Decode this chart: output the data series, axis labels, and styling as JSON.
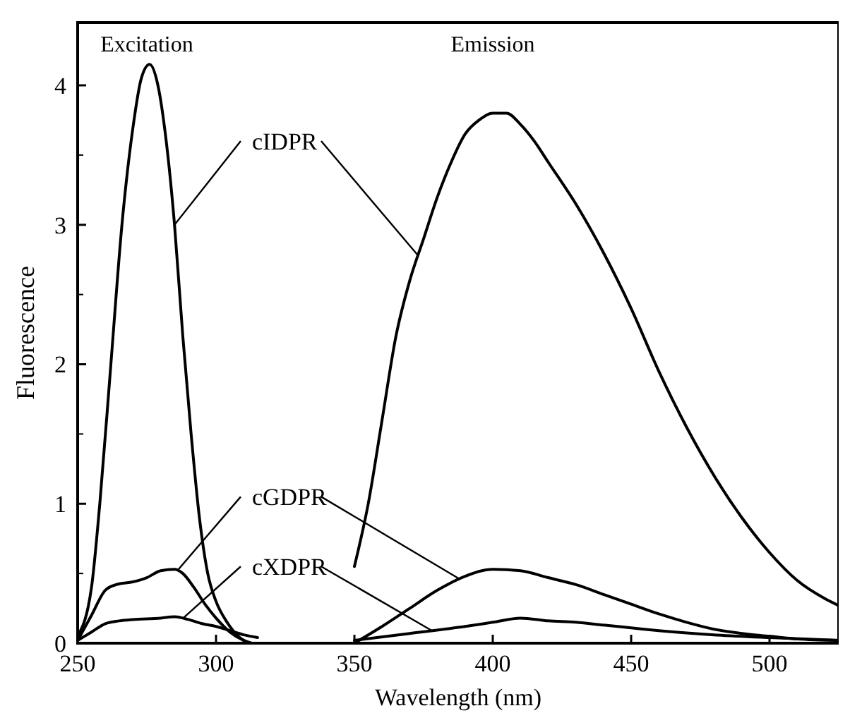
{
  "chart_data": {
    "type": "line",
    "xlabel": "Wavelength (nm)",
    "ylabel": "Fluorescence",
    "xlim": [
      250,
      525
    ],
    "ylim": [
      0,
      4.45
    ],
    "xticks": [
      250,
      300,
      350,
      400,
      450,
      500
    ],
    "yticks": [
      0,
      1,
      2,
      3,
      4
    ],
    "grid": false,
    "marker": "none",
    "line_style": "solid",
    "annotations": [
      "Excitation",
      "Emission"
    ],
    "series": [
      {
        "name": "cIDPR",
        "color": "#000000",
        "x": [
          250,
          255,
          258,
          262,
          266,
          270,
          273,
          276,
          279,
          282,
          285,
          288,
          291,
          294,
          297,
          300,
          304,
          308,
          312,
          331,
          350,
          355,
          360,
          365,
          370,
          375,
          380,
          385,
          390,
          395,
          400,
          405,
          410,
          415,
          420,
          430,
          440,
          450,
          460,
          470,
          480,
          490,
          500,
          510,
          520,
          525
        ],
        "values": [
          0.05,
          0.4,
          1.0,
          2.0,
          3.0,
          3.7,
          4.05,
          4.15,
          4.0,
          3.6,
          3.0,
          2.2,
          1.5,
          0.9,
          0.5,
          0.3,
          0.15,
          0.05,
          0.0,
          null,
          0.55,
          1.0,
          1.6,
          2.2,
          2.6,
          2.9,
          3.2,
          3.45,
          3.65,
          3.75,
          3.8,
          3.8,
          3.72,
          3.6,
          3.45,
          3.15,
          2.8,
          2.4,
          1.95,
          1.55,
          1.2,
          0.9,
          0.65,
          0.45,
          0.32,
          0.27
        ]
      },
      {
        "name": "cGDPR",
        "color": "#000000",
        "x": [
          250,
          255,
          260,
          264,
          270,
          275,
          280,
          285,
          288,
          292,
          296,
          300,
          305,
          310,
          313,
          331,
          350,
          360,
          370,
          380,
          390,
          400,
          410,
          420,
          430,
          440,
          450,
          460,
          470,
          480,
          490,
          500,
          510,
          525
        ],
        "values": [
          0.02,
          0.2,
          0.38,
          0.42,
          0.44,
          0.47,
          0.52,
          0.53,
          0.5,
          0.4,
          0.28,
          0.18,
          0.08,
          0.02,
          0.0,
          null,
          0.0,
          0.12,
          0.25,
          0.38,
          0.48,
          0.53,
          0.52,
          0.47,
          0.42,
          0.35,
          0.28,
          0.21,
          0.15,
          0.1,
          0.07,
          0.05,
          0.03,
          0.02
        ]
      },
      {
        "name": "cXDPR",
        "color": "#000000",
        "x": [
          250,
          255,
          260,
          265,
          270,
          280,
          285,
          290,
          295,
          300,
          305,
          310,
          315,
          331,
          350,
          370,
          390,
          400,
          410,
          420,
          430,
          440,
          450,
          460,
          480,
          500,
          525
        ],
        "values": [
          0.02,
          0.08,
          0.14,
          0.16,
          0.17,
          0.18,
          0.19,
          0.17,
          0.14,
          0.12,
          0.09,
          0.06,
          0.04,
          null,
          0.02,
          0.07,
          0.12,
          0.15,
          0.18,
          0.16,
          0.15,
          0.13,
          0.11,
          0.09,
          0.06,
          0.04,
          0.02
        ]
      }
    ]
  }
}
